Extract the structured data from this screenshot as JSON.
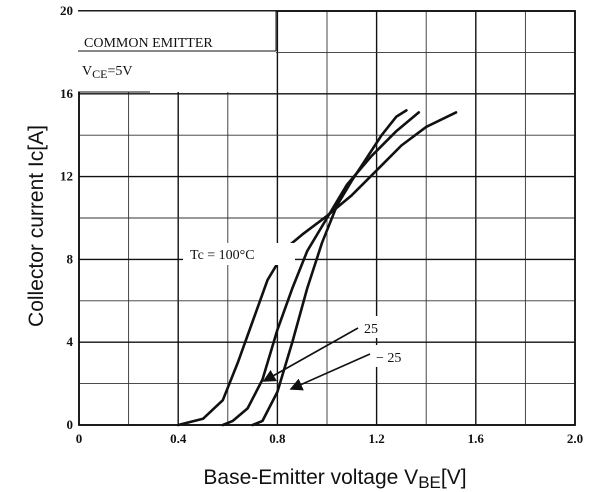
{
  "chart_data": {
    "type": "line",
    "xlabel": "Base-Emitter voltage V",
    "xlabel_sub": "BE",
    "xlabel_unit": "[V]",
    "ylabel": "Collector current  Ic[A]",
    "xlim": [
      0,
      2.0
    ],
    "ylim": [
      0,
      20
    ],
    "x_ticks": [
      "0",
      "0.4",
      "0.8",
      "1.2",
      "1.6",
      "2.0"
    ],
    "y_ticks": [
      "0",
      "4",
      "8",
      "12",
      "16",
      "20"
    ],
    "x_tick_values": [
      0,
      0.4,
      0.8,
      1.2,
      1.6,
      2.0
    ],
    "y_tick_values": [
      0,
      4,
      8,
      12,
      16,
      20
    ],
    "x_minor_step": 0.2,
    "y_minor_step": 2,
    "grid": true,
    "annotations": {
      "condition_line1": "COMMON EMITTER",
      "condition_v": "V",
      "condition_sub": "CE",
      "condition_val": "=5V",
      "label_100": "Tc = 100°C",
      "label_25": "25",
      "label_m25": "− 25"
    },
    "series": [
      {
        "label_key": "label_100",
        "points": [
          [
            0.4,
            0
          ],
          [
            0.5,
            0.3
          ],
          [
            0.58,
            1.2
          ],
          [
            0.64,
            3
          ],
          [
            0.7,
            5
          ],
          [
            0.76,
            7
          ],
          [
            0.84,
            8.6
          ],
          [
            0.9,
            9.2
          ],
          [
            1.0,
            10.1
          ],
          [
            1.1,
            11.1
          ],
          [
            1.2,
            12.3
          ],
          [
            1.3,
            13.5
          ],
          [
            1.4,
            14.4
          ],
          [
            1.52,
            15.1
          ]
        ]
      },
      {
        "label_key": "label_25",
        "points": [
          [
            0.58,
            0
          ],
          [
            0.62,
            0.2
          ],
          [
            0.68,
            0.8
          ],
          [
            0.74,
            2.2
          ],
          [
            0.8,
            4.6
          ],
          [
            0.86,
            6.6
          ],
          [
            0.92,
            8.4
          ],
          [
            1.0,
            10.0
          ],
          [
            1.08,
            11.6
          ],
          [
            1.18,
            13.0
          ],
          [
            1.28,
            14.2
          ],
          [
            1.37,
            15.1
          ]
        ]
      },
      {
        "label_key": "label_m25",
        "points": [
          [
            0.7,
            0
          ],
          [
            0.74,
            0.2
          ],
          [
            0.8,
            1.6
          ],
          [
            0.86,
            4.0
          ],
          [
            0.92,
            6.6
          ],
          [
            0.98,
            8.8
          ],
          [
            1.04,
            10.6
          ],
          [
            1.1,
            11.8
          ],
          [
            1.16,
            12.9
          ],
          [
            1.22,
            14.0
          ],
          [
            1.28,
            14.9
          ],
          [
            1.32,
            15.2
          ]
        ]
      }
    ]
  }
}
